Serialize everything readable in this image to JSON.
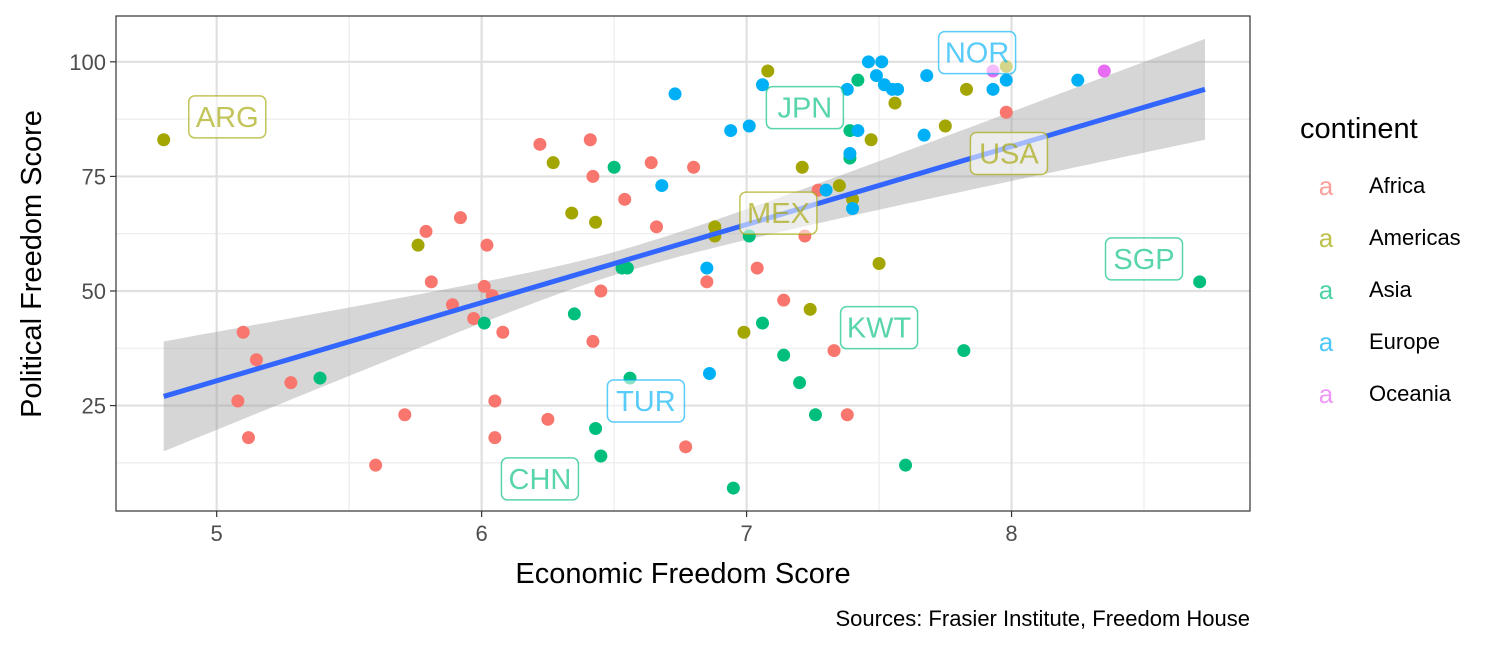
{
  "chart_data": {
    "type": "scatter",
    "title": "",
    "xlabel": "Economic Freedom Score",
    "ylabel": "Political Freedom Score",
    "caption": "Sources: Frasier Institute, Freedom House",
    "xlim": [
      4.62,
      8.9
    ],
    "ylim": [
      2,
      110
    ],
    "x_ticks": [
      5,
      6,
      7,
      8
    ],
    "y_ticks": [
      25,
      50,
      75,
      100
    ],
    "grid": true,
    "legend": {
      "title": "continent",
      "position": "right",
      "glyph": "a"
    },
    "continents": [
      {
        "name": "Africa",
        "color": "#F8766D"
      },
      {
        "name": "Americas",
        "color": "#A3A500"
      },
      {
        "name": "Asia",
        "color": "#00BF7D"
      },
      {
        "name": "Europe",
        "color": "#00B0F6"
      },
      {
        "name": "Oceania",
        "color": "#E76BF3"
      }
    ],
    "trend": {
      "method": "linear regression with confidence band",
      "color": "#3366FF",
      "band_color": "#999999",
      "x_range": [
        4.8,
        8.73
      ],
      "fit": [
        27,
        94
      ],
      "band_at_start": [
        15,
        39
      ],
      "band_at_end": [
        83.5,
        105.5
      ],
      "band_center_x": 6.55,
      "band_center_halfwidth": 2.5
    },
    "labels": [
      {
        "text": "ARG",
        "continent": "Americas",
        "x": 5.04,
        "y": 88
      },
      {
        "text": "JPN",
        "continent": "Asia",
        "x": 7.22,
        "y": 90
      },
      {
        "text": "NOR",
        "continent": "Europe",
        "x": 7.87,
        "y": 102
      },
      {
        "text": "USA",
        "continent": "Americas",
        "x": 7.99,
        "y": 80
      },
      {
        "text": "MEX",
        "continent": "Americas",
        "x": 7.12,
        "y": 67
      },
      {
        "text": "SGP",
        "continent": "Asia",
        "x": 8.5,
        "y": 57
      },
      {
        "text": "KWT",
        "continent": "Asia",
        "x": 7.5,
        "y": 42
      },
      {
        "text": "TUR",
        "continent": "Europe",
        "x": 6.62,
        "y": 26
      },
      {
        "text": "CHN",
        "continent": "Asia",
        "x": 6.22,
        "y": 9
      }
    ],
    "points": [
      {
        "continent": "Africa",
        "x": 5.1,
        "y": 41
      },
      {
        "continent": "Africa",
        "x": 5.15,
        "y": 35
      },
      {
        "continent": "Africa",
        "x": 5.08,
        "y": 26
      },
      {
        "continent": "Africa",
        "x": 5.12,
        "y": 18
      },
      {
        "continent": "Africa",
        "x": 5.28,
        "y": 30
      },
      {
        "continent": "Africa",
        "x": 5.6,
        "y": 12
      },
      {
        "continent": "Africa",
        "x": 5.71,
        "y": 23
      },
      {
        "continent": "Africa",
        "x": 5.79,
        "y": 63
      },
      {
        "continent": "Africa",
        "x": 5.81,
        "y": 52
      },
      {
        "continent": "Africa",
        "x": 5.89,
        "y": 47
      },
      {
        "continent": "Africa",
        "x": 5.92,
        "y": 66
      },
      {
        "continent": "Africa",
        "x": 5.97,
        "y": 44
      },
      {
        "continent": "Africa",
        "x": 6.01,
        "y": 51
      },
      {
        "continent": "Africa",
        "x": 6.02,
        "y": 60
      },
      {
        "continent": "Africa",
        "x": 6.04,
        "y": 49
      },
      {
        "continent": "Africa",
        "x": 6.05,
        "y": 26
      },
      {
        "continent": "Africa",
        "x": 6.05,
        "y": 18
      },
      {
        "continent": "Africa",
        "x": 6.08,
        "y": 41
      },
      {
        "continent": "Africa",
        "x": 6.22,
        "y": 82
      },
      {
        "continent": "Africa",
        "x": 6.25,
        "y": 22
      },
      {
        "continent": "Africa",
        "x": 6.41,
        "y": 83
      },
      {
        "continent": "Africa",
        "x": 6.42,
        "y": 75
      },
      {
        "continent": "Africa",
        "x": 6.42,
        "y": 39
      },
      {
        "continent": "Africa",
        "x": 6.45,
        "y": 50
      },
      {
        "continent": "Africa",
        "x": 6.54,
        "y": 70
      },
      {
        "continent": "Africa",
        "x": 6.64,
        "y": 78
      },
      {
        "continent": "Africa",
        "x": 6.66,
        "y": 64
      },
      {
        "continent": "Africa",
        "x": 6.77,
        "y": 16
      },
      {
        "continent": "Africa",
        "x": 6.8,
        "y": 77
      },
      {
        "continent": "Africa",
        "x": 6.85,
        "y": 52
      },
      {
        "continent": "Africa",
        "x": 7.04,
        "y": 55
      },
      {
        "continent": "Africa",
        "x": 7.14,
        "y": 48
      },
      {
        "continent": "Africa",
        "x": 7.22,
        "y": 62
      },
      {
        "continent": "Africa",
        "x": 7.27,
        "y": 72
      },
      {
        "continent": "Africa",
        "x": 7.33,
        "y": 37
      },
      {
        "continent": "Africa",
        "x": 7.38,
        "y": 23
      },
      {
        "continent": "Africa",
        "x": 7.98,
        "y": 89
      },
      {
        "continent": "Americas",
        "x": 4.8,
        "y": 83
      },
      {
        "continent": "Americas",
        "x": 5.76,
        "y": 60
      },
      {
        "continent": "Americas",
        "x": 6.27,
        "y": 78
      },
      {
        "continent": "Americas",
        "x": 6.34,
        "y": 67
      },
      {
        "continent": "Americas",
        "x": 6.43,
        "y": 65
      },
      {
        "continent": "Americas",
        "x": 6.88,
        "y": 62
      },
      {
        "continent": "Americas",
        "x": 6.88,
        "y": 64
      },
      {
        "continent": "Americas",
        "x": 6.99,
        "y": 41
      },
      {
        "continent": "Americas",
        "x": 7.08,
        "y": 98
      },
      {
        "continent": "Americas",
        "x": 7.21,
        "y": 77
      },
      {
        "continent": "Americas",
        "x": 7.24,
        "y": 46
      },
      {
        "continent": "Americas",
        "x": 7.35,
        "y": 73
      },
      {
        "continent": "Americas",
        "x": 7.4,
        "y": 70
      },
      {
        "continent": "Americas",
        "x": 7.47,
        "y": 83
      },
      {
        "continent": "Americas",
        "x": 7.5,
        "y": 56
      },
      {
        "continent": "Americas",
        "x": 7.56,
        "y": 91
      },
      {
        "continent": "Americas",
        "x": 7.75,
        "y": 86
      },
      {
        "continent": "Americas",
        "x": 7.83,
        "y": 94
      },
      {
        "continent": "Americas",
        "x": 7.98,
        "y": 99
      },
      {
        "continent": "Asia",
        "x": 5.39,
        "y": 31
      },
      {
        "continent": "Asia",
        "x": 6.01,
        "y": 43
      },
      {
        "continent": "Asia",
        "x": 6.35,
        "y": 45
      },
      {
        "continent": "Asia",
        "x": 6.43,
        "y": 20
      },
      {
        "continent": "Asia",
        "x": 6.45,
        "y": 14
      },
      {
        "continent": "Asia",
        "x": 6.5,
        "y": 77
      },
      {
        "continent": "Asia",
        "x": 6.53,
        "y": 55
      },
      {
        "continent": "Asia",
        "x": 6.55,
        "y": 55
      },
      {
        "continent": "Asia",
        "x": 6.56,
        "y": 31
      },
      {
        "continent": "Asia",
        "x": 6.95,
        "y": 7
      },
      {
        "continent": "Asia",
        "x": 7.01,
        "y": 62
      },
      {
        "continent": "Asia",
        "x": 7.06,
        "y": 43
      },
      {
        "continent": "Asia",
        "x": 7.14,
        "y": 36
      },
      {
        "continent": "Asia",
        "x": 7.2,
        "y": 30
      },
      {
        "continent": "Asia",
        "x": 7.26,
        "y": 23
      },
      {
        "continent": "Asia",
        "x": 7.39,
        "y": 85
      },
      {
        "continent": "Asia",
        "x": 7.39,
        "y": 79
      },
      {
        "continent": "Asia",
        "x": 7.42,
        "y": 96
      },
      {
        "continent": "Asia",
        "x": 7.6,
        "y": 12
      },
      {
        "continent": "Asia",
        "x": 7.82,
        "y": 37
      },
      {
        "continent": "Asia",
        "x": 8.71,
        "y": 52
      },
      {
        "continent": "Europe",
        "x": 6.68,
        "y": 73
      },
      {
        "continent": "Europe",
        "x": 6.73,
        "y": 93
      },
      {
        "continent": "Europe",
        "x": 6.85,
        "y": 55
      },
      {
        "continent": "Europe",
        "x": 6.86,
        "y": 32
      },
      {
        "continent": "Europe",
        "x": 6.94,
        "y": 85
      },
      {
        "continent": "Europe",
        "x": 7.01,
        "y": 86
      },
      {
        "continent": "Europe",
        "x": 7.06,
        "y": 95
      },
      {
        "continent": "Europe",
        "x": 7.3,
        "y": 72
      },
      {
        "continent": "Europe",
        "x": 7.38,
        "y": 94
      },
      {
        "continent": "Europe",
        "x": 7.39,
        "y": 80
      },
      {
        "continent": "Europe",
        "x": 7.4,
        "y": 68
      },
      {
        "continent": "Europe",
        "x": 7.42,
        "y": 85
      },
      {
        "continent": "Europe",
        "x": 7.46,
        "y": 100
      },
      {
        "continent": "Europe",
        "x": 7.49,
        "y": 97
      },
      {
        "continent": "Europe",
        "x": 7.51,
        "y": 100
      },
      {
        "continent": "Europe",
        "x": 7.52,
        "y": 95
      },
      {
        "continent": "Europe",
        "x": 7.55,
        "y": 94
      },
      {
        "continent": "Europe",
        "x": 7.57,
        "y": 94
      },
      {
        "continent": "Europe",
        "x": 7.67,
        "y": 84
      },
      {
        "continent": "Europe",
        "x": 7.68,
        "y": 97
      },
      {
        "continent": "Europe",
        "x": 7.93,
        "y": 94
      },
      {
        "continent": "Europe",
        "x": 7.98,
        "y": 96
      },
      {
        "continent": "Europe",
        "x": 8.25,
        "y": 96
      },
      {
        "continent": "Oceania",
        "x": 7.93,
        "y": 98
      },
      {
        "continent": "Oceania",
        "x": 8.35,
        "y": 98
      }
    ]
  }
}
